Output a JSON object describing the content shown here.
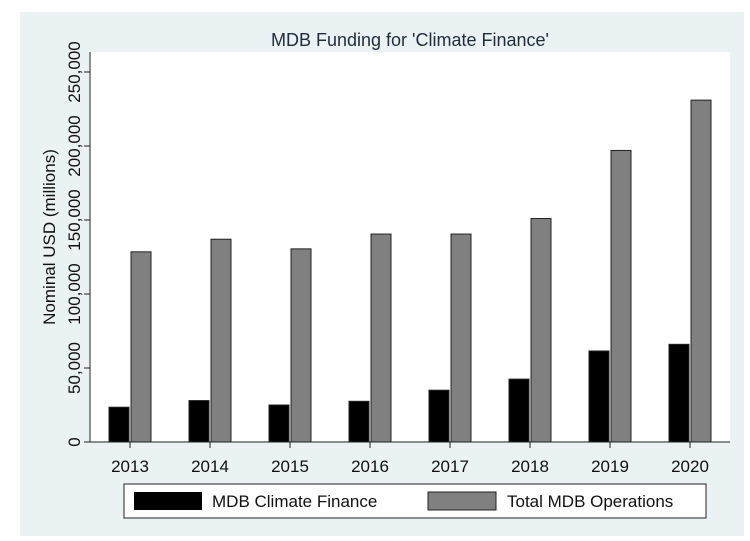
{
  "chart_data": {
    "type": "bar",
    "title": "MDB Funding for 'Climate Finance'",
    "xlabel": "",
    "ylabel": "Nominal USD (millions)",
    "categories": [
      "2013",
      "2014",
      "2015",
      "2016",
      "2017",
      "2018",
      "2019",
      "2020"
    ],
    "series": [
      {
        "name": "MDB Climate Finance",
        "values": [
          23500,
          28000,
          25000,
          27500,
          35000,
          42500,
          61500,
          66000
        ],
        "color": "#000000"
      },
      {
        "name": "Total MDB Operations",
        "values": [
          128500,
          137000,
          130500,
          140500,
          140500,
          151000,
          197000,
          231000
        ],
        "color": "#808080"
      }
    ],
    "ylim": [
      0,
      250000
    ],
    "yticks": [
      "0",
      "50,000",
      "100,000",
      "150,000",
      "200,000",
      "250,000"
    ],
    "ytick_values": [
      0,
      50000,
      100000,
      150000,
      200000,
      250000
    ],
    "grid": false,
    "legend": "bottom"
  }
}
